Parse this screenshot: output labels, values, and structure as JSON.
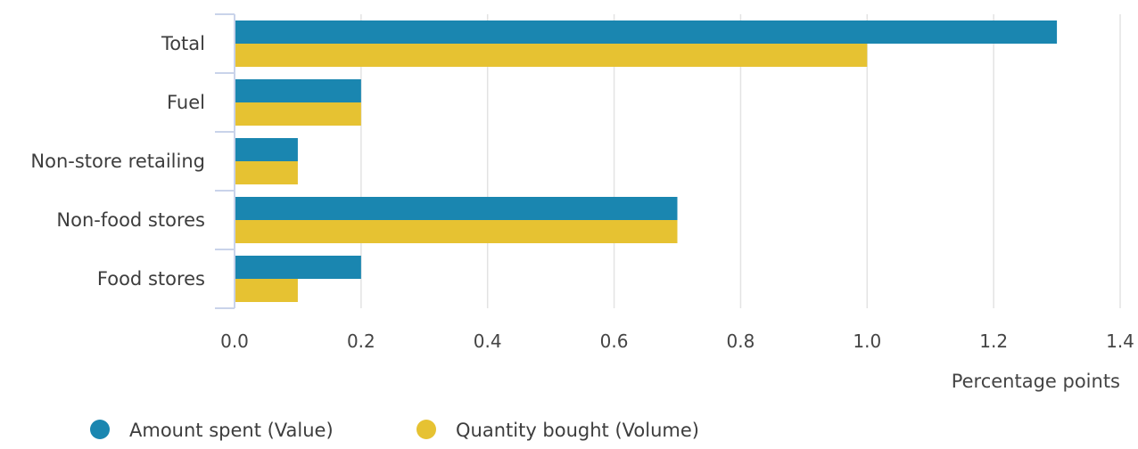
{
  "chart_data": {
    "type": "bar",
    "orientation": "horizontal",
    "categories": [
      "Total",
      "Fuel",
      "Non-store retailing",
      "Non-food stores",
      "Food stores"
    ],
    "series": [
      {
        "name": "Amount spent (Value)",
        "values": [
          1.3,
          0.2,
          0.1,
          0.7,
          0.2
        ],
        "color": "#1a86b0"
      },
      {
        "name": "Quantity bought (Volume)",
        "values": [
          1.0,
          0.2,
          0.1,
          0.7,
          0.1
        ],
        "color": "#e6c232"
      }
    ],
    "x_ticks": [
      "0.0",
      "0.2",
      "0.4",
      "0.6",
      "0.8",
      "1.0",
      "1.2",
      "1.4"
    ],
    "xlim": [
      0,
      1.4
    ],
    "xlabel": "Percentage points",
    "ylabel": "",
    "grid": "vertical",
    "legend_position": "bottom-left"
  }
}
